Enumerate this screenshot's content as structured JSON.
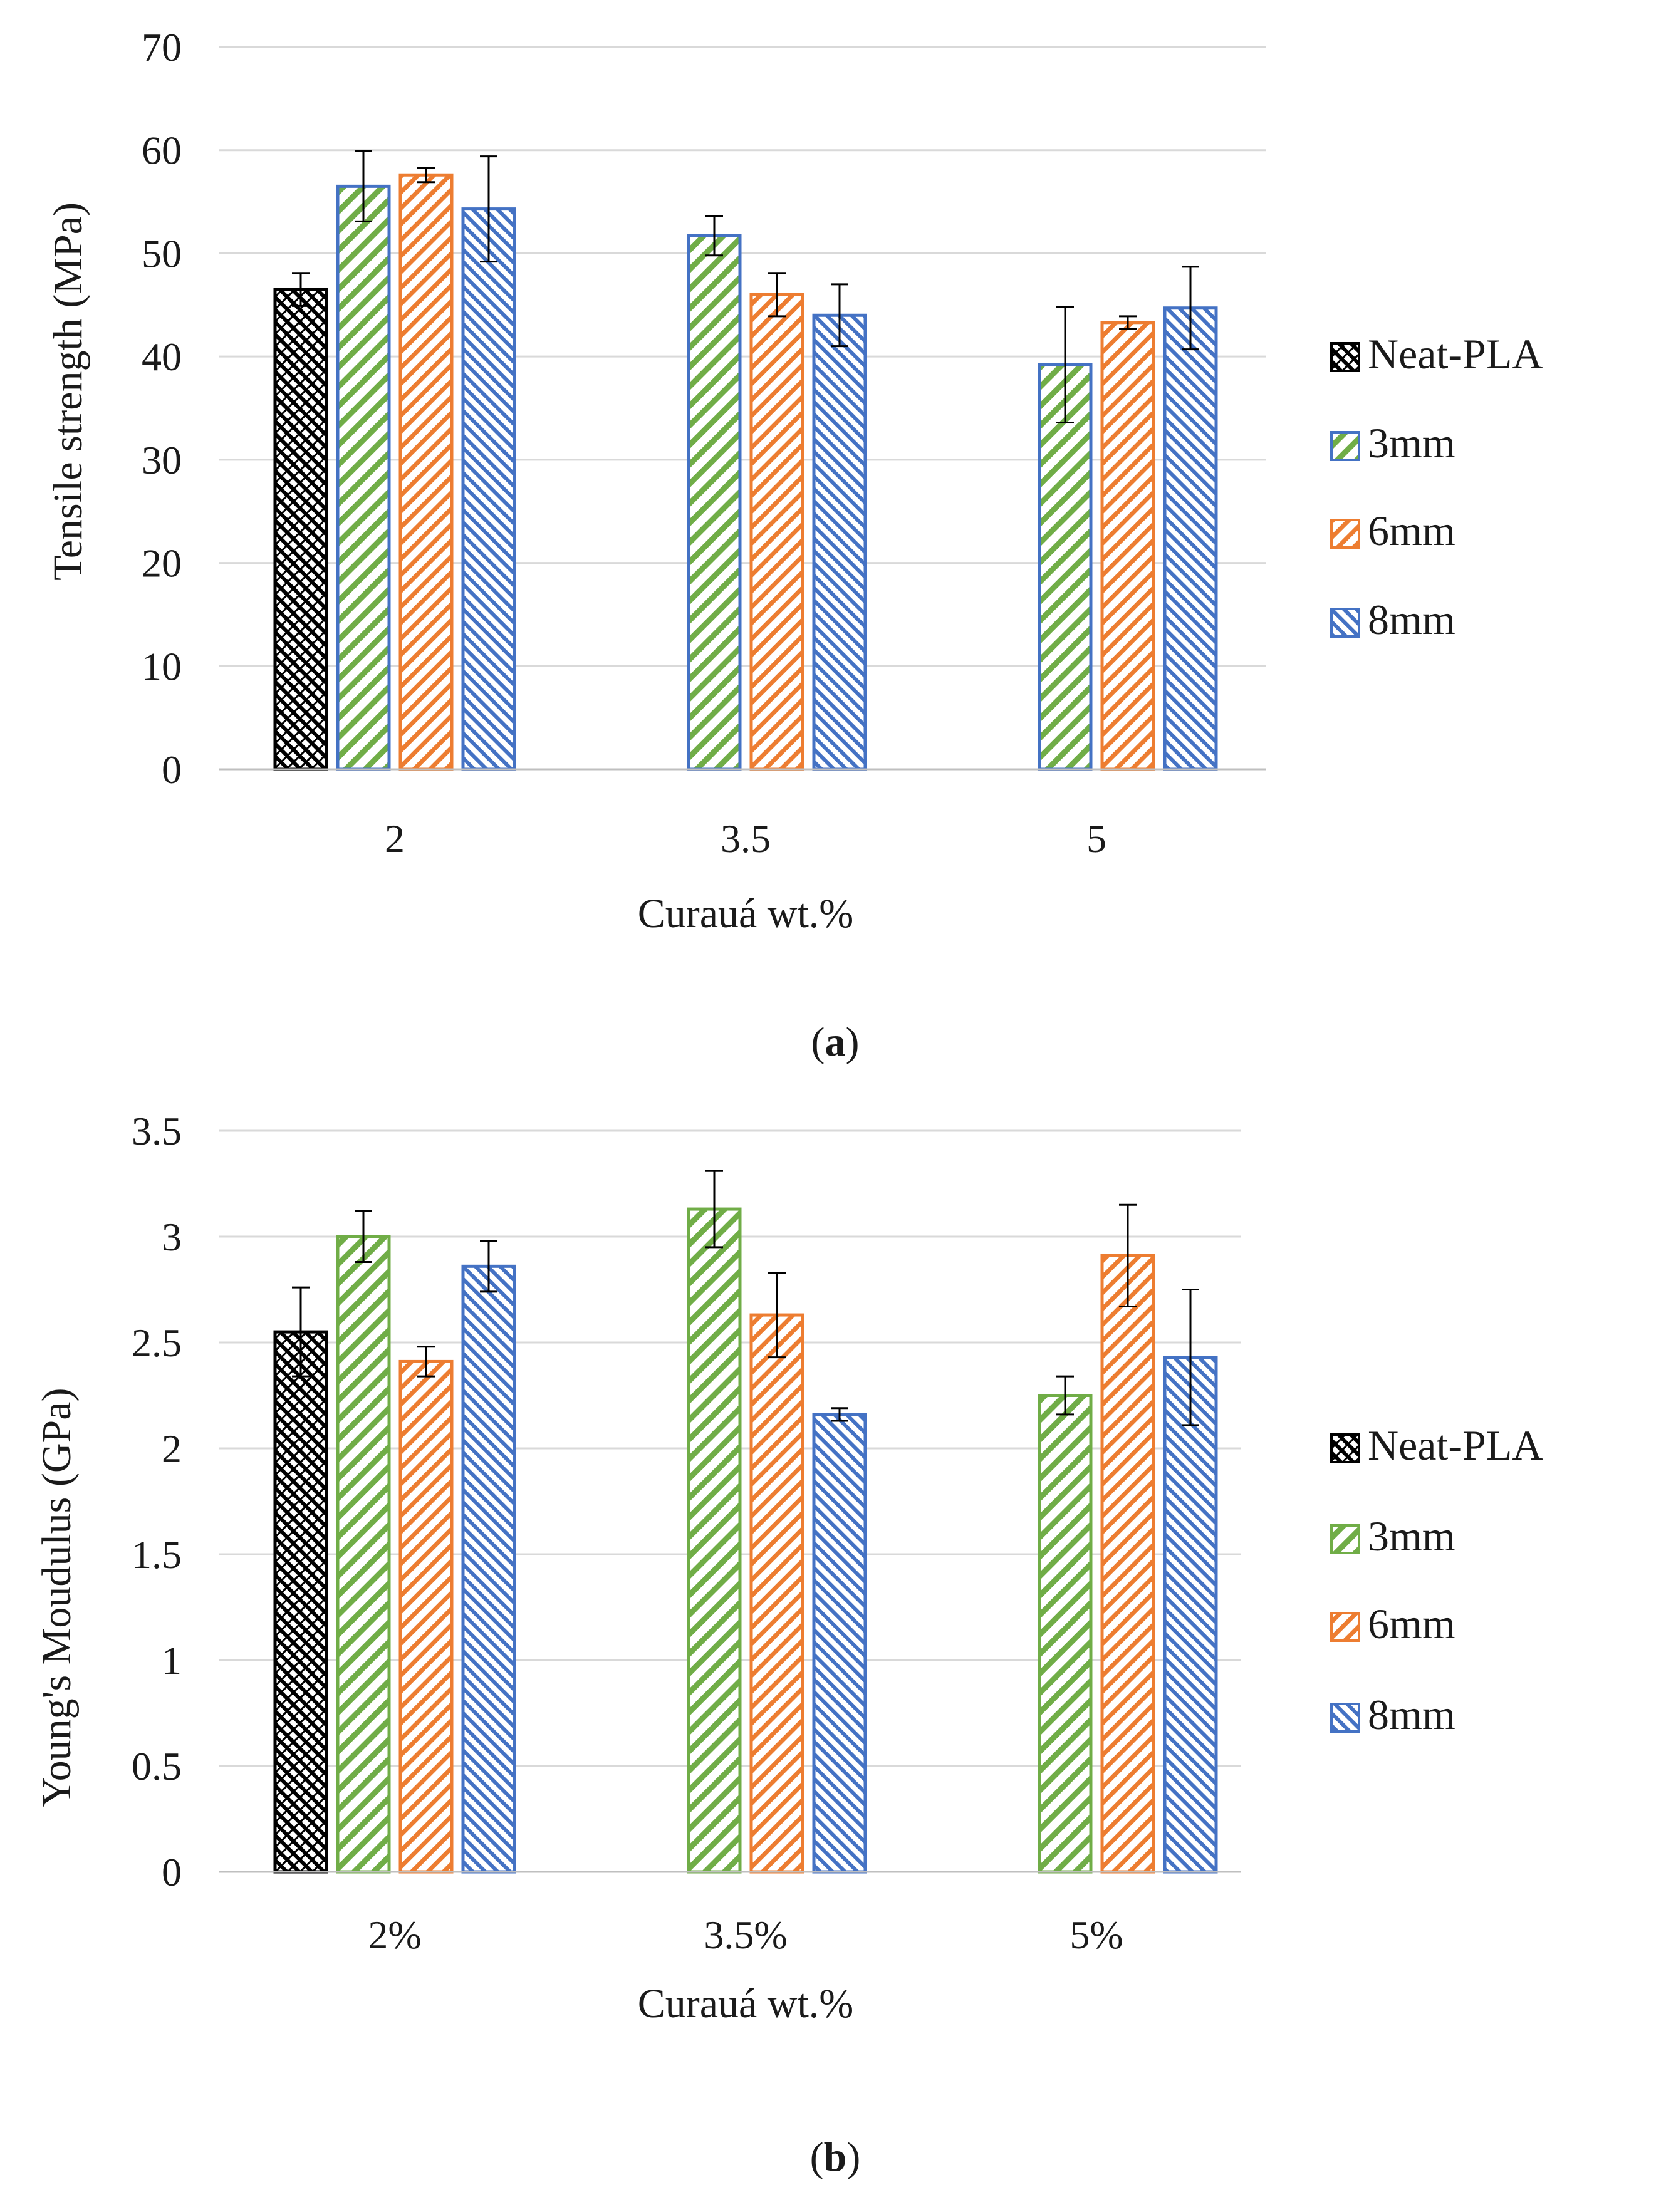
{
  "chart_data": [
    {
      "type": "bar",
      "panel": "a",
      "caption": "a",
      "ylabel": "Tensile strength (MPa)",
      "xlabel": "Curauá wt.%",
      "ylim": [
        0,
        70
      ],
      "yticks": [
        0,
        10,
        20,
        30,
        40,
        50,
        60,
        70
      ],
      "grid": true,
      "legend_position": "right",
      "categories": [
        "2",
        "3.5",
        "5"
      ],
      "series": [
        {
          "name": "Neat-PLA",
          "values": [
            46.5,
            null,
            null
          ],
          "errors": [
            1.6,
            null,
            null
          ]
        },
        {
          "name": "3mm",
          "values": [
            56.5,
            51.7,
            39.2
          ],
          "errors": [
            3.4,
            1.9,
            5.6
          ]
        },
        {
          "name": "6mm",
          "values": [
            57.6,
            46.0,
            43.3
          ],
          "errors": [
            0.7,
            2.1,
            0.6
          ]
        },
        {
          "name": "8mm",
          "values": [
            54.3,
            44.0,
            44.7
          ],
          "errors": [
            5.1,
            3.0,
            4.0
          ]
        }
      ]
    },
    {
      "type": "bar",
      "panel": "b",
      "caption": "b",
      "ylabel": "Young's Moudulus (GPa)",
      "xlabel": "Curauá wt.%",
      "ylim": [
        0,
        3.5
      ],
      "yticks": [
        0,
        0.5,
        1,
        1.5,
        2,
        2.5,
        3,
        3.5
      ],
      "grid": true,
      "legend_position": "right",
      "categories": [
        "2%",
        "3.5%",
        "5%"
      ],
      "series": [
        {
          "name": "Neat-PLA",
          "values": [
            2.55,
            null,
            null
          ],
          "errors": [
            0.21,
            null,
            null
          ]
        },
        {
          "name": "3mm",
          "values": [
            3.0,
            3.13,
            2.25
          ],
          "errors": [
            0.12,
            0.18,
            0.09
          ]
        },
        {
          "name": "6mm",
          "values": [
            2.41,
            2.63,
            2.91
          ],
          "errors": [
            0.07,
            0.2,
            0.24
          ]
        },
        {
          "name": "8mm",
          "values": [
            2.86,
            2.16,
            2.43
          ],
          "errors": [
            0.12,
            0.03,
            0.32
          ]
        }
      ]
    }
  ],
  "colors": {
    "Neat-PLA": "#000000",
    "3mm_fill": "#70ad47",
    "3mm_edge_a": "#4472c4",
    "3mm_edge_b": "#70ad47",
    "6mm": "#ed7d31",
    "8mm": "#4472c4",
    "grid": "#d9d9d9"
  }
}
